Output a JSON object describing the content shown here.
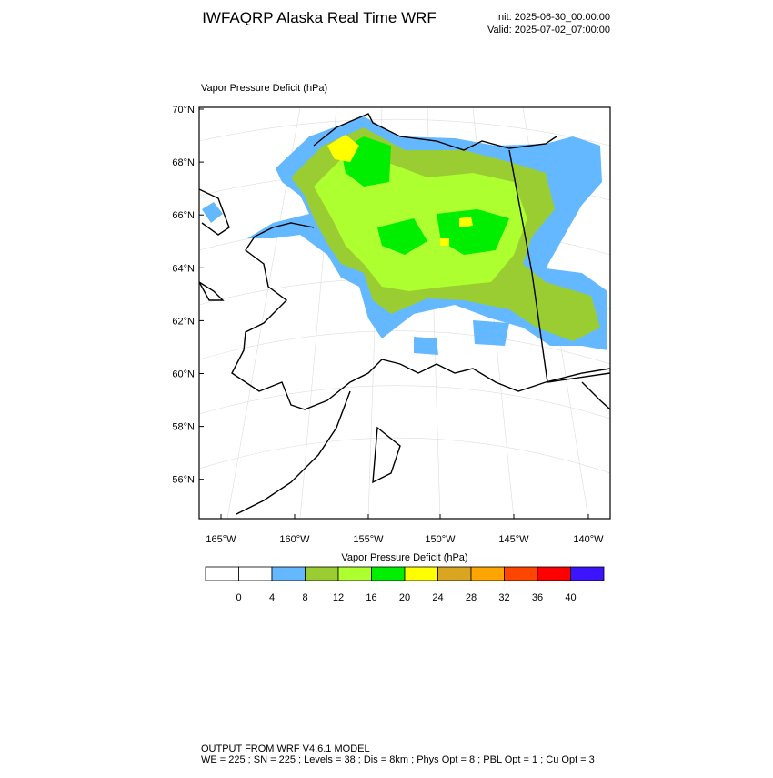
{
  "header": {
    "title": "IWFAQRP Alaska Real Time WRF",
    "init": "Init: 2025-06-30_00:00:00",
    "valid": "Valid: 2025-07-02_07:00:00"
  },
  "map": {
    "label": "Vapor Pressure Deficit   (hPa)",
    "lat_labels": [
      "70°N",
      "68°N",
      "66°N",
      "64°N",
      "62°N",
      "60°N",
      "58°N",
      "56°N"
    ],
    "lon_labels": [
      "165°W",
      "160°W",
      "155°W",
      "150°W",
      "145°W",
      "140°W"
    ]
  },
  "colorbar": {
    "label": "Vapor Pressure Deficit  (hPa)",
    "ticks": [
      0,
      4,
      8,
      12,
      16,
      20,
      24,
      28,
      32,
      36,
      40
    ],
    "colors": [
      "#ffffff",
      "#ffffff",
      "#63b8ff",
      "#9acd32",
      "#adff2f",
      "#00ee00",
      "#ffff00",
      "#daa520",
      "#ffa500",
      "#ff4500",
      "#ff0000",
      "#3c14ff"
    ]
  },
  "footer": {
    "line1": "OUTPUT FROM WRF V4.6.1 MODEL",
    "line2": "WE = 225 ; SN = 225 ; Levels = 38 ; Dis = 8km ; Phys Opt = 8 ; PBL Opt = 1 ; Cu Opt = 3"
  }
}
